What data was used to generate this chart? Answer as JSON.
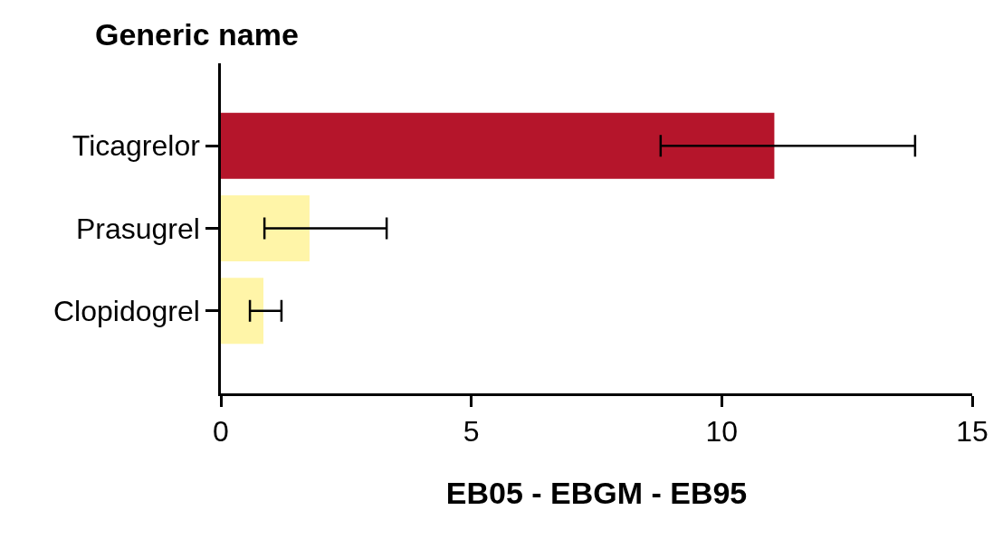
{
  "chart_data": {
    "type": "bar",
    "orientation": "horizontal",
    "ylabel": "Generic name",
    "xlabel": "EB05 - EBGM - EB95",
    "categories": [
      "Ticagrelor",
      "Prasugrel",
      "Clopidogrel"
    ],
    "values": [
      11.05,
      1.77,
      0.85
    ],
    "colors": [
      "#b5152b",
      "#fff5a8",
      "#fff5a8"
    ],
    "errors": [
      [
        8.78,
        13.86
      ],
      [
        0.87,
        3.31
      ],
      [
        0.58,
        1.21
      ]
    ],
    "xlim": [
      0,
      15
    ],
    "xticks": [
      0,
      5,
      10,
      15
    ],
    "grid": false
  }
}
